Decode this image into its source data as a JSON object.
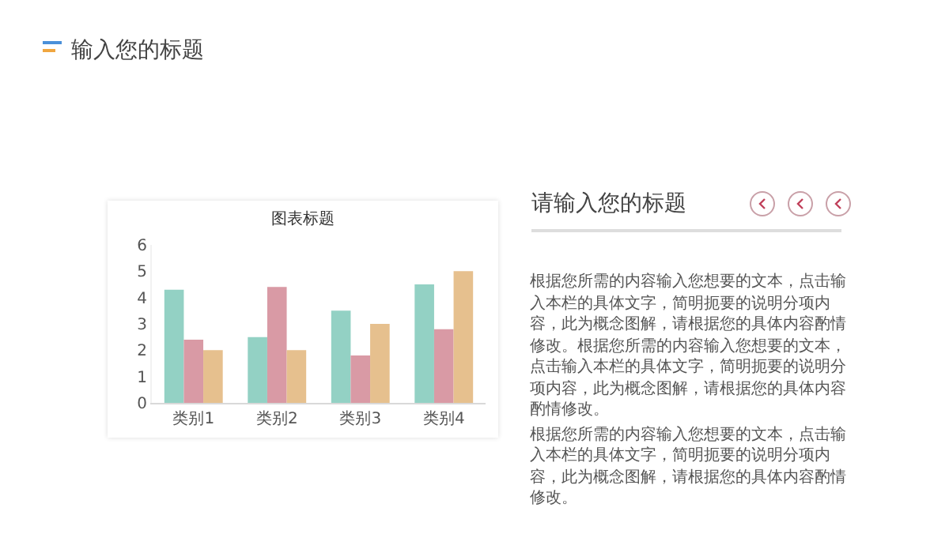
{
  "chart_data": [
    {
      "type": "bar",
      "title": "图表标题",
      "annotations": [
        "输入您的标题"
      ],
      "categories": [
        "类别1",
        "类别2",
        "类别3",
        "类别4"
      ],
      "series": [
        {
          "color": "#93d1c4",
          "values": [
            4.3,
            2.5,
            3.5,
            4.5
          ]
        },
        {
          "color": "#d99aa5",
          "values": [
            2.4,
            4.4,
            1.8,
            2.8
          ]
        },
        {
          "color": "#e6c08e",
          "values": [
            2,
            2,
            3,
            5
          ]
        }
      ],
      "ylim": [
        0,
        6
      ],
      "yticks": [
        0,
        1,
        2,
        3,
        4,
        5,
        6
      ],
      "grid": false
    },
    {
      "type": "other",
      "title": "请输入您的标题",
      "annotations": [
        "根据您所需的内容输入您想要的文本，点击输入本栏的具体文字，简明扼要的说明分项内容，此为概念图解，请根据您的具体内容酌情修改。根据您所需的内容输入您想要的文本，点击输入本栏的具体文字，简明扼要的说明分项内容，此为概念图解，请根据您的具体内容酌情修改。",
        "根据您所需的内容输入您想要的文本，点击输入本栏的具体文字，简明扼要的说明分项内容，此为概念图解，请根据您的具体内容酌情修改。"
      ]
    }
  ]
}
